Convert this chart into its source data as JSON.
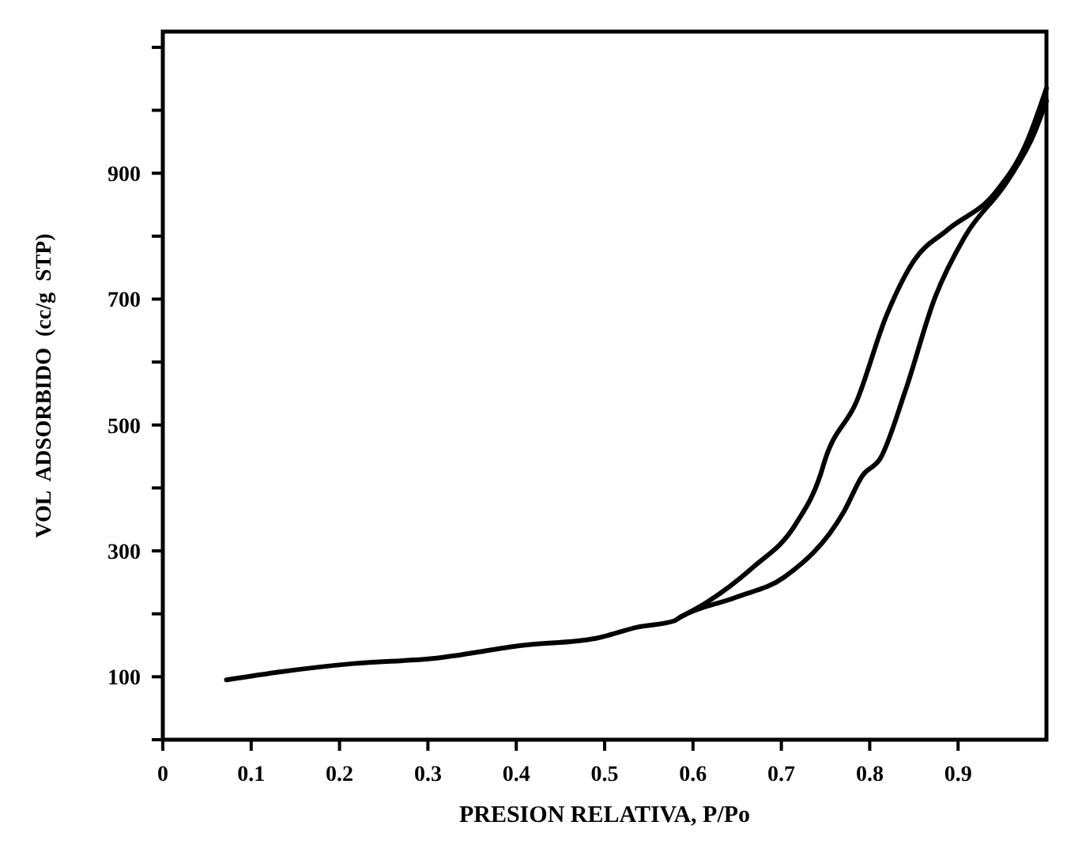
{
  "chart_data": {
    "type": "line",
    "xlabel": "PRESION RELATIVA, P/Po",
    "ylabel": "VOL  ADSORBIDO  (cc/g  STP)",
    "xlim": [
      0,
      1
    ],
    "ylim": [
      0,
      1125
    ],
    "xticks": [
      0,
      0.1,
      0.2,
      0.3,
      0.4,
      0.5,
      0.6,
      0.7,
      0.8,
      0.9
    ],
    "yticks": [
      {
        "value": 0,
        "label": null
      },
      100,
      {
        "value": 200,
        "label": null
      },
      300,
      {
        "value": 400,
        "label": null
      },
      500,
      {
        "value": 600,
        "label": null
      },
      700,
      {
        "value": 800,
        "label": null
      },
      900,
      {
        "value": 1000,
        "label": null
      },
      {
        "value": 1100,
        "label": null
      }
    ],
    "grid": false,
    "marker": "none",
    "line_style": "solid",
    "series": [
      {
        "color": "#000000",
        "x": [
          0.072,
          0.134,
          0.216,
          0.305,
          0.408,
          0.49,
          0.538,
          0.579,
          0.586,
          0.648,
          0.703,
          0.771,
          0.792,
          0.812,
          0.84,
          0.874,
          0.908,
          0.956,
          0.987,
          1.0
        ],
        "values": [
          95,
          108,
          121,
          129,
          150,
          161,
          179,
          189,
          195,
          226,
          258,
          363,
          420,
          447,
          553,
          703,
          800,
          888,
          966,
          1015
        ]
      },
      {
        "color": "#000000",
        "x": [
          0.586,
          0.613,
          0.668,
          0.716,
          0.744,
          0.75,
          0.785,
          0.819,
          0.85,
          0.888,
          0.942,
          0.977,
          1.0
        ],
        "values": [
          195,
          216,
          274,
          342,
          420,
          447,
          537,
          674,
          761,
          810,
          869,
          947,
          1035
        ]
      }
    ]
  }
}
